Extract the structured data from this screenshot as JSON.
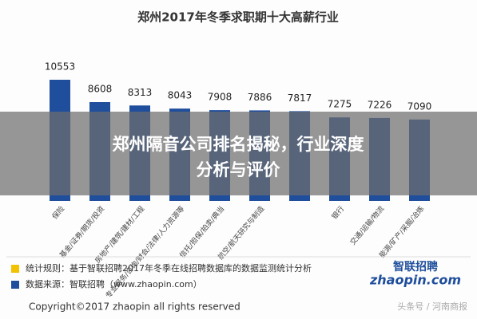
{
  "chart_data": {
    "type": "bar",
    "title": "郑州2017年冬季求职期十大高薪行业",
    "categories": [
      "保险",
      "基金/证券/期货/投资",
      "房地产/建筑/建材/工程",
      "专业服务/咨询/财会/法律/人力资源等",
      "信托/担保/拍卖/典当",
      "航空/航天研究与制造",
      null,
      "银行",
      "交通/运输/物流",
      "能源/矿产/采掘/冶炼"
    ],
    "values": [
      10553,
      8608,
      8313,
      8043,
      7908,
      7886,
      7817,
      7275,
      7226,
      7090
    ],
    "color": "#1f4e9c"
  },
  "overlay": {
    "headline": "郑州隔音公司排名揭秘，行业深度分析与评价"
  },
  "notes": [
    {
      "text": "统计规则：基于智联招聘2017年冬季在线招聘数据库的数据监测统计分析",
      "color": "#f2c200"
    },
    {
      "text": "数据来源：智联招聘（www.zhaopin.com）",
      "color": "#1f4e9c"
    }
  ],
  "copyright": "Copyright©2017 zhaopin all rights reserved",
  "logo": {
    "brand": "智联招聘",
    "site": "zhaopin.com"
  },
  "watermark": "头条号 / 河南商报"
}
